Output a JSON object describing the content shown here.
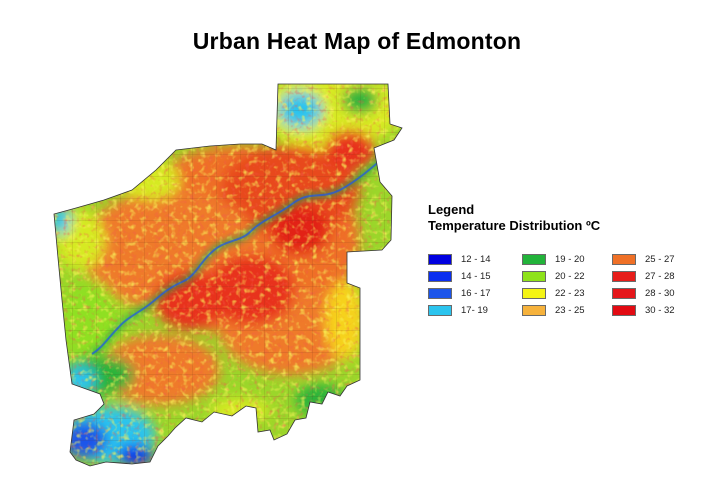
{
  "title": "Urban Heat Map of Edmonton",
  "legend": {
    "heading": "Legend",
    "subheading": "Temperature Distribution ºC",
    "columns": [
      [
        {
          "label": "12 - 14",
          "color": "#0000e0"
        },
        {
          "label": "14 - 15",
          "color": "#0a2ef0"
        },
        {
          "label": "16 - 17",
          "color": "#1c55ea"
        },
        {
          "label": "17- 19",
          "color": "#2bc4ee"
        }
      ],
      [
        {
          "label": "19 - 20",
          "color": "#22b33a"
        },
        {
          "label": "20 - 22",
          "color": "#8ee21a"
        },
        {
          "label": "22 - 23",
          "color": "#f4f414"
        },
        {
          "label": "23 - 25",
          "color": "#f6b23c"
        }
      ],
      [
        {
          "label": "25 - 27",
          "color": "#ef7026"
        },
        {
          "label": "27 - 28",
          "color": "#e61d1a"
        },
        {
          "label": "28 - 30",
          "color": "#e4161a"
        },
        {
          "label": "30 - 32",
          "color": "#e20a12"
        }
      ]
    ]
  }
}
